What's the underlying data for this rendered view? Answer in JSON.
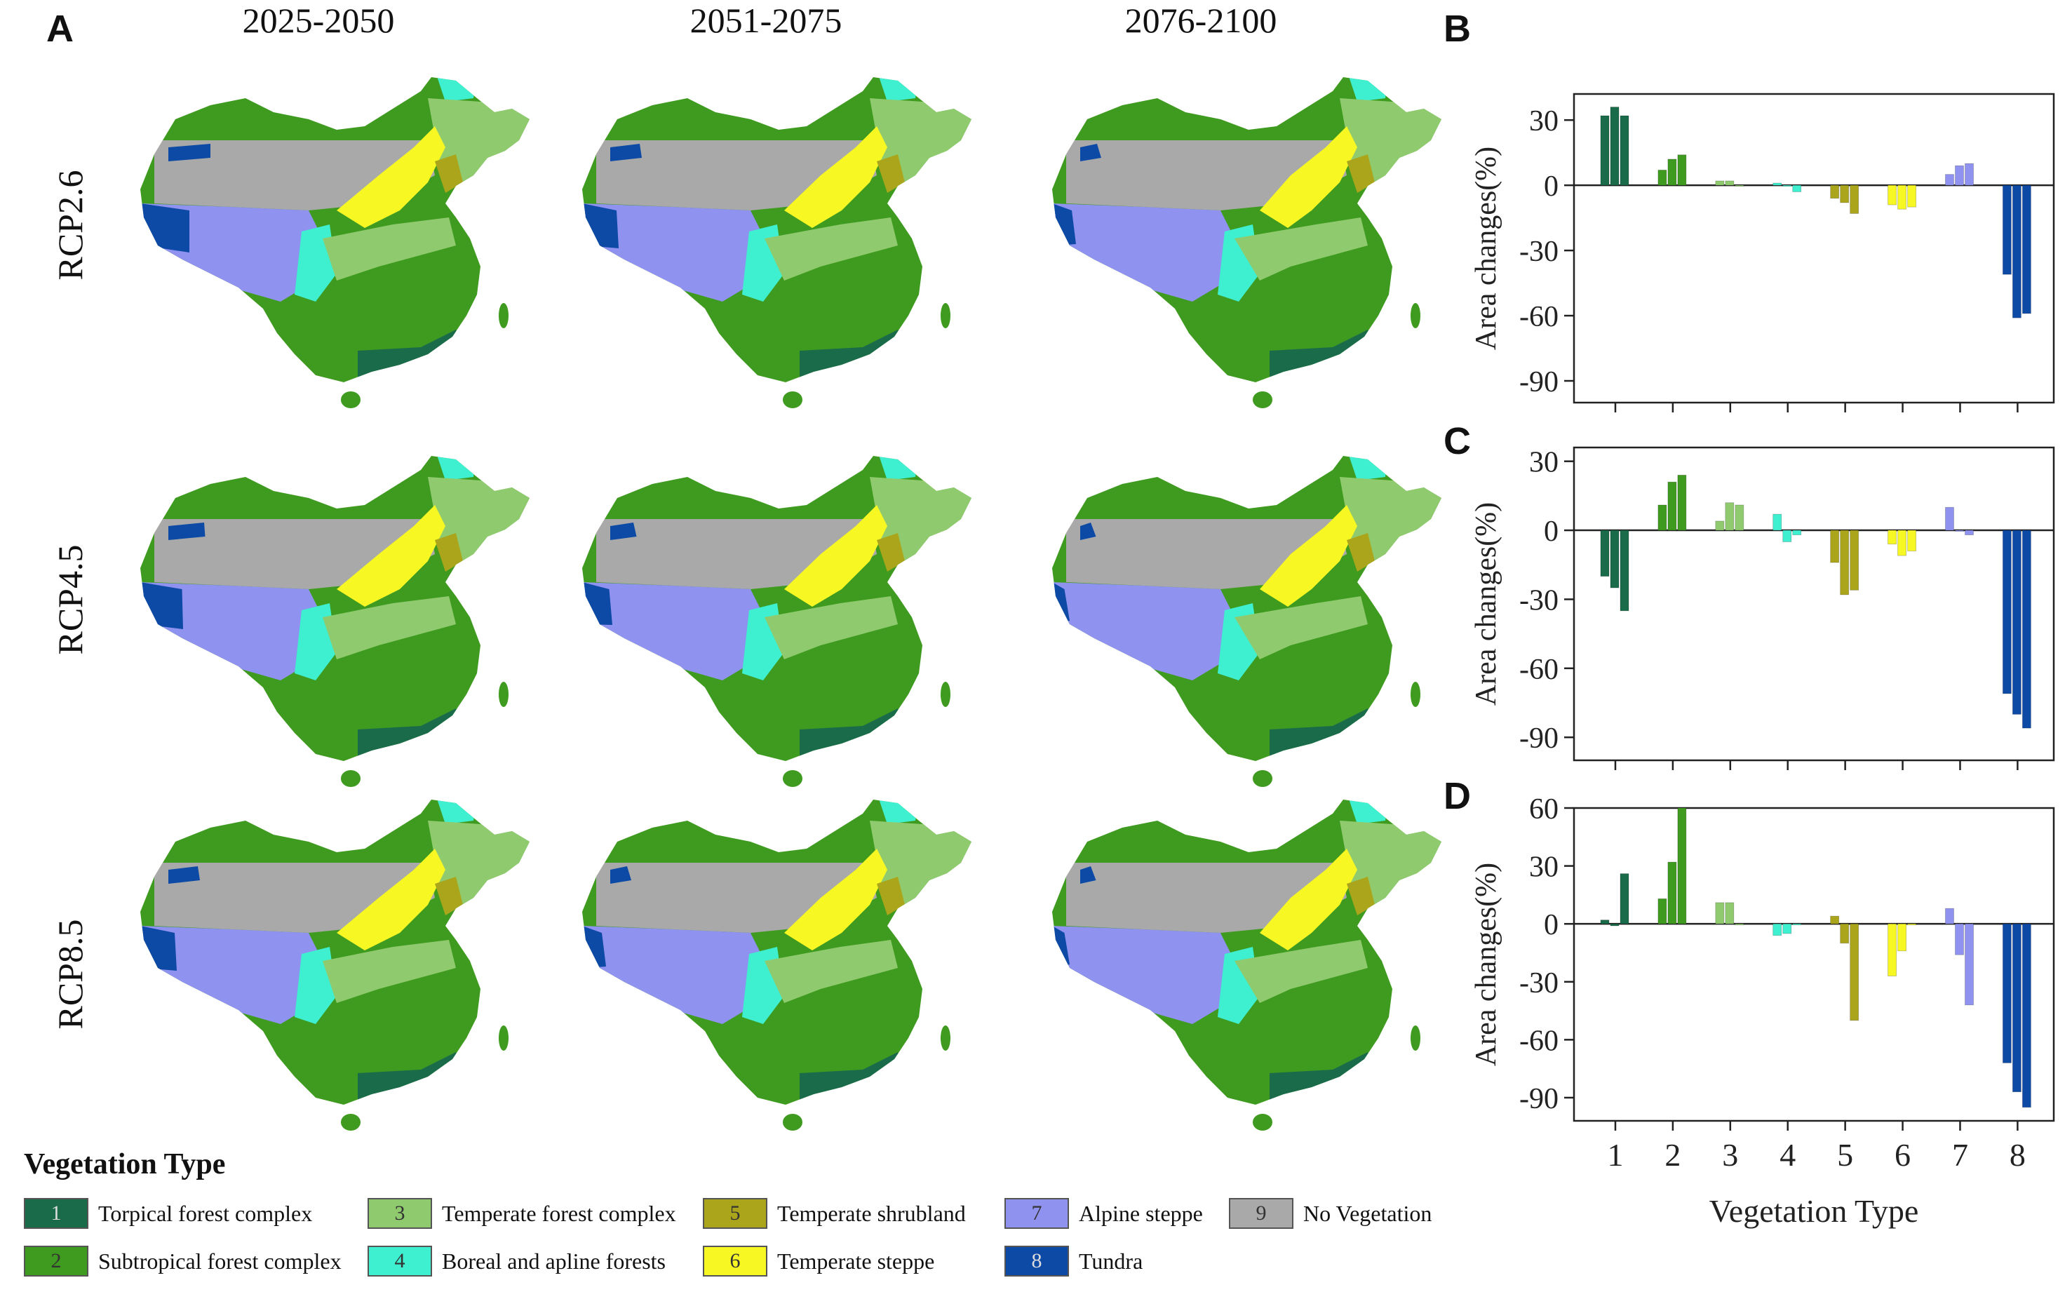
{
  "panel_letters": {
    "a": "A",
    "b": "B",
    "c": "C",
    "d": "D"
  },
  "period_titles": [
    "2025-2050",
    "2051-2075",
    "2076-2100"
  ],
  "scenario_titles": [
    "RCP2.6",
    "RCP4.5",
    "RCP8.5"
  ],
  "legend": {
    "title": "Vegetation Type",
    "items": [
      {
        "num": "1",
        "label": "Torpical forest complex",
        "color": "#1a6b4a"
      },
      {
        "num": "2",
        "label": "Subtropical forest complex",
        "color": "#3f9b1f"
      },
      {
        "num": "3",
        "label": "Temperate forest complex",
        "color": "#8fcb6e"
      },
      {
        "num": "4",
        "label": "Boreal and apline forests",
        "color": "#3ef0cf"
      },
      {
        "num": "5",
        "label": "Temperate shrubland",
        "color": "#aaa51b"
      },
      {
        "num": "6",
        "label": "Temperate steppe",
        "color": "#f7f724"
      },
      {
        "num": "7",
        "label": "Alpine steppe",
        "color": "#8f92ee"
      },
      {
        "num": "8",
        "label": "Tundra",
        "color": "#0d4aa6"
      },
      {
        "num": "9",
        "label": "No Vegetation",
        "color": "#a9a9a9"
      }
    ]
  },
  "chart_data": [
    {
      "panel": "B",
      "type": "bar",
      "categories": [
        "1",
        "2",
        "3",
        "4",
        "5",
        "6",
        "7",
        "8"
      ],
      "series": [
        {
          "values": [
            32,
            7,
            2,
            1,
            -6,
            -9,
            5,
            -41
          ]
        },
        {
          "values": [
            36,
            12,
            2,
            0,
            -8,
            -11,
            9,
            -61
          ]
        },
        {
          "values": [
            32,
            14,
            0,
            -3,
            -13,
            -10,
            10,
            -59
          ]
        }
      ],
      "ylabel": "Area changes(%)",
      "ylim": [
        -100,
        42
      ],
      "yticks": [
        30,
        0,
        -30,
        -60,
        -90
      ],
      "show_xtick_labels": false
    },
    {
      "panel": "C",
      "type": "bar",
      "categories": [
        "1",
        "2",
        "3",
        "4",
        "5",
        "6",
        "7",
        "8"
      ],
      "series": [
        {
          "values": [
            -20,
            11,
            4,
            7,
            -14,
            -6,
            10,
            -71
          ]
        },
        {
          "values": [
            -25,
            21,
            12,
            -5,
            -28,
            -11,
            0,
            -80
          ]
        },
        {
          "values": [
            -35,
            24,
            11,
            -2,
            -26,
            -9,
            -2,
            -86
          ]
        }
      ],
      "ylabel": "Area changes(%)",
      "ylim": [
        -100,
        36
      ],
      "yticks": [
        30,
        0,
        -30,
        -60,
        -90
      ],
      "show_xtick_labels": false
    },
    {
      "panel": "D",
      "type": "bar",
      "categories": [
        "1",
        "2",
        "3",
        "4",
        "5",
        "6",
        "7",
        "8"
      ],
      "series": [
        {
          "values": [
            2,
            13,
            11,
            -6,
            4,
            -27,
            8,
            -72
          ]
        },
        {
          "values": [
            -1,
            32,
            11,
            -5,
            -10,
            -14,
            -16,
            -87
          ]
        },
        {
          "values": [
            26,
            60,
            0,
            0,
            -50,
            0,
            -42,
            -95
          ]
        }
      ],
      "ylabel": "Area changes(%)",
      "xlabel": "Vegetation Type",
      "ylim": [
        -102,
        60
      ],
      "yticks": [
        60,
        30,
        0,
        -30,
        -60,
        -90
      ],
      "show_xtick_labels": true
    }
  ]
}
